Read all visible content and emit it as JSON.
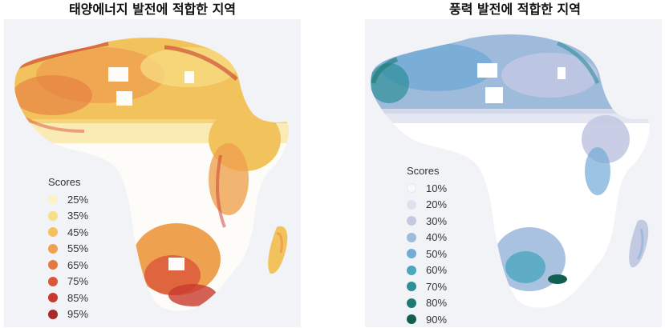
{
  "left_panel": {
    "title": "태양에너지 발전에 적합한 지역",
    "legend": {
      "title": "Scores",
      "items": [
        {
          "label": "25%",
          "color": "#fbf3c6"
        },
        {
          "label": "35%",
          "color": "#f8de86"
        },
        {
          "label": "45%",
          "color": "#f2c35c"
        },
        {
          "label": "55%",
          "color": "#eea14f"
        },
        {
          "label": "65%",
          "color": "#e4793f"
        },
        {
          "label": "75%",
          "color": "#d9563a"
        },
        {
          "label": "85%",
          "color": "#c83a2d"
        },
        {
          "label": "95%",
          "color": "#a82a2a"
        }
      ]
    }
  },
  "right_panel": {
    "title": "풍력 발전에 적합한 지역",
    "legend": {
      "title": "Scores",
      "items": [
        {
          "label": "10%",
          "color": "#f7f8fb"
        },
        {
          "label": "20%",
          "color": "#dde1ef"
        },
        {
          "label": "30%",
          "color": "#c3c9e3"
        },
        {
          "label": "40%",
          "color": "#9fbbdc"
        },
        {
          "label": "50%",
          "color": "#72abd6"
        },
        {
          "label": "60%",
          "color": "#4ba6bf"
        },
        {
          "label": "70%",
          "color": "#2e8f99"
        },
        {
          "label": "80%",
          "color": "#1d7a72"
        },
        {
          "label": "90%",
          "color": "#125f52"
        }
      ]
    }
  }
}
